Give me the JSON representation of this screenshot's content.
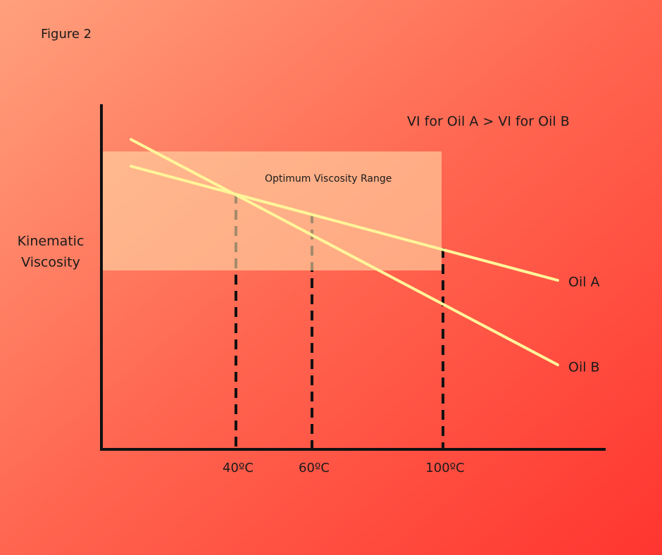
{
  "figure_label": "Figure 2",
  "note": "VI for Oil A > VI for Oil B",
  "range_label": "Optimum Viscosity Range",
  "y_axis_label": [
    "Kinematic",
    "Viscosity"
  ],
  "temperatures": [
    "40ºC",
    "60ºC",
    "100ºC"
  ],
  "oils": [
    "Oil A",
    "Oil B"
  ]
}
